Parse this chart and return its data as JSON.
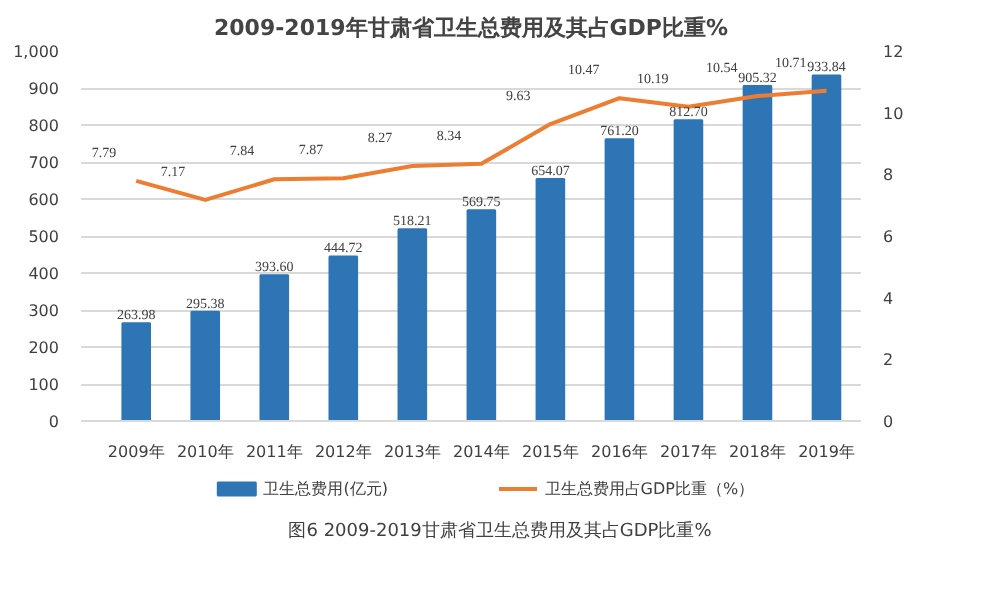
{
  "chart_data": {
    "type": "bar",
    "title": "2009-2019年甘肃省卫生总费用及其占GDP比重%",
    "categories": [
      "2009年",
      "2010年",
      "2011年",
      "2012年",
      "2013年",
      "2014年",
      "2015年",
      "2016年",
      "2017年",
      "2018年",
      "2019年"
    ],
    "series": [
      {
        "name": "卫生总费用(亿元)",
        "color": "#2e75b6",
        "values": [
          263.98,
          295.38,
          393.6,
          444.72,
          518.21,
          569.75,
          654.07,
          761.2,
          812.7,
          905.32,
          933.84
        ],
        "value_labels": [
          "263.98",
          "295.38",
          "393.60",
          "444.72",
          "518.21",
          "569.75",
          "654.07",
          "761.20",
          "812.70",
          "905.32",
          "933.84"
        ]
      },
      {
        "name": "卫生总费用占GDP比重（%）",
        "type": "line",
        "axis": "y2",
        "color": "#ed7d31",
        "values": [
          7.79,
          7.17,
          7.84,
          7.87,
          8.27,
          8.34,
          9.63,
          10.47,
          10.19,
          10.54,
          10.71
        ],
        "value_labels": [
          "7.79",
          "7.17",
          "7.84",
          "7.87",
          "8.27",
          "8.34",
          "9.63",
          "10.47",
          "10.19",
          "10.54",
          "10.71"
        ]
      }
    ],
    "ylim": [
      0,
      1000
    ],
    "yticks": [
      0,
      100,
      200,
      300,
      400,
      500,
      600,
      700,
      800,
      900,
      {
        "value": 1000,
        "label": "1,000"
      }
    ],
    "y2lim": [
      0,
      12
    ],
    "y2ticks": [
      0,
      2,
      4,
      6,
      8,
      10,
      12
    ],
    "grid": "y",
    "legend": "bottom",
    "marker": "none",
    "line_style": "solid",
    "annotations": [
      "图6 2009-2019甘肃省卫生总费用及其占GDP比重%"
    ]
  }
}
